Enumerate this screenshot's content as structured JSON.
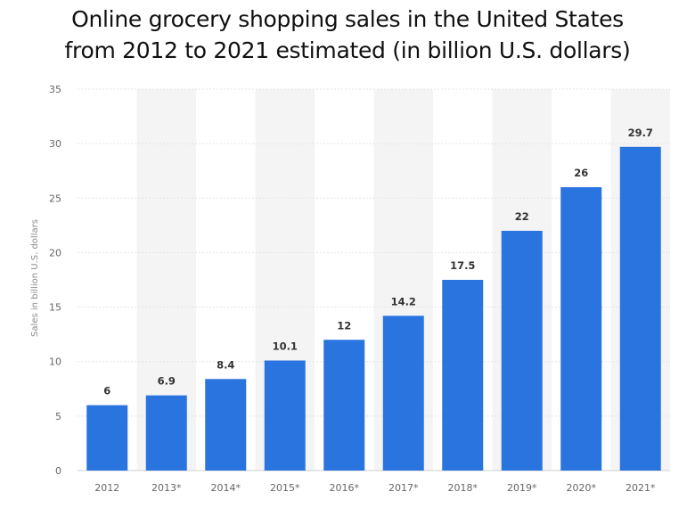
{
  "title_line1": "Online grocery shopping sales in the United States",
  "title_line2": "from 2012 to 2021 estimated (in billion U.S. dollars)",
  "chart_data": {
    "type": "bar",
    "title": "Online grocery shopping sales in the United States from 2012 to 2021 estimated (in billion U.S. dollars)",
    "xlabel": "",
    "ylabel": "Sales in billion U.S. dollars",
    "categories": [
      "2012",
      "2013*",
      "2014*",
      "2015*",
      "2016*",
      "2017*",
      "2018*",
      "2019*",
      "2020*",
      "2021*"
    ],
    "values": [
      6,
      6.9,
      8.4,
      10.1,
      12,
      14.2,
      17.5,
      22,
      26,
      29.7
    ],
    "value_labels": [
      "6",
      "6.9",
      "8.4",
      "10.1",
      "12",
      "14.2",
      "17.5",
      "22",
      "26",
      "29.7"
    ],
    "ylim": [
      0,
      35
    ],
    "yticks": [
      0,
      5,
      10,
      15,
      20,
      25,
      30,
      35
    ],
    "grid": true,
    "legend": "none",
    "bar_color": "#2a74e0",
    "band_color": "#f4f4f4",
    "grid_color": "#e3e3e3"
  }
}
